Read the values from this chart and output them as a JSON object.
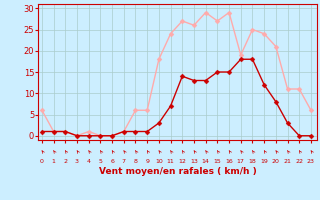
{
  "hours": [
    0,
    1,
    2,
    3,
    4,
    5,
    6,
    7,
    8,
    9,
    10,
    11,
    12,
    13,
    14,
    15,
    16,
    17,
    18,
    19,
    20,
    21,
    22,
    23
  ],
  "wind_avg": [
    1,
    1,
    1,
    0,
    0,
    0,
    0,
    1,
    1,
    1,
    3,
    7,
    14,
    13,
    13,
    15,
    15,
    18,
    18,
    12,
    8,
    3,
    0,
    0
  ],
  "wind_gust": [
    6,
    1,
    1,
    0,
    1,
    0,
    0,
    1,
    6,
    6,
    18,
    24,
    27,
    26,
    29,
    27,
    29,
    19,
    25,
    24,
    21,
    11,
    11,
    6
  ],
  "avg_color": "#cc0000",
  "gust_color": "#ffaaaa",
  "bg_color": "#cceeff",
  "grid_color": "#aacccc",
  "axis_color": "#cc0000",
  "ylabel_ticks": [
    0,
    5,
    10,
    15,
    20,
    25,
    30
  ],
  "ylim": [
    -1,
    31
  ],
  "xlim": [
    -0.3,
    23.5
  ],
  "xlabel": "Vent moyen/en rafales ( km/h )",
  "markersize": 2.5,
  "linewidth": 1.0
}
